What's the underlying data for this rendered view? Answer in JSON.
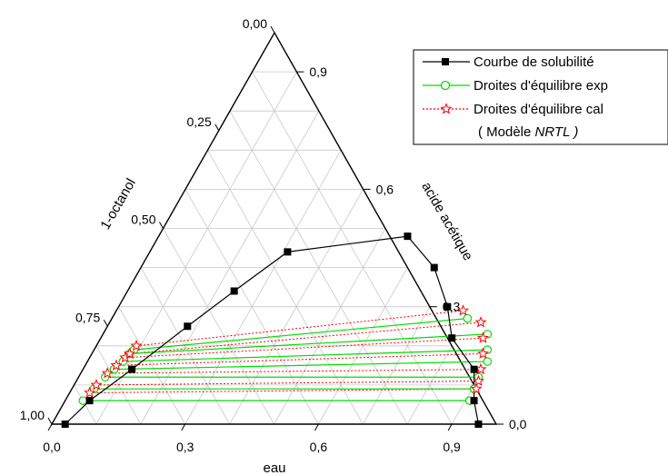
{
  "chart_data": {
    "type": "ternary",
    "axes": {
      "bottom": {
        "label": "eau",
        "ticks": [
          {
            "value": 0.0,
            "label": "0,0"
          },
          {
            "value": 0.3,
            "label": "0,3"
          },
          {
            "value": 0.6,
            "label": "0,6"
          },
          {
            "value": 0.9,
            "label": "0,9"
          }
        ]
      },
      "right": {
        "label": "acide acétique",
        "ticks": [
          {
            "value": 0.0,
            "label": "0,0"
          },
          {
            "value": 0.3,
            "label": "0,3"
          },
          {
            "value": 0.6,
            "label": "0,6"
          },
          {
            "value": 0.9,
            "label": "0,9"
          }
        ]
      },
      "left": {
        "label": "1-octanol",
        "ticks": [
          {
            "value": 0.0,
            "label": "0,00"
          },
          {
            "value": 0.25,
            "label": "0,25"
          },
          {
            "value": 0.5,
            "label": "0,50"
          },
          {
            "value": 0.75,
            "label": "0,75"
          },
          {
            "value": 1.0,
            "label": "1,00"
          }
        ]
      }
    },
    "grid": true,
    "legend_position": "top-right",
    "legend": {
      "entries": [
        {
          "label": "Courbe de solubilité",
          "style": "square",
          "color": "#000000"
        },
        {
          "label": "Droites d'équilibre exp",
          "style": "circle",
          "color": "#00dd00"
        },
        {
          "label": "Droites d'équilibre cal",
          "style": "star",
          "color": "#ff0000"
        }
      ],
      "note_prefix": "( Modèle ",
      "note_model": "NRTL",
      "note_suffix": " )"
    },
    "series": [
      {
        "name": "Courbe de solubilité",
        "color": "#000000",
        "points_eau_acide": [
          [
            0.03,
            0.0
          ],
          [
            0.055,
            0.06
          ],
          [
            0.11,
            0.14
          ],
          [
            0.18,
            0.25
          ],
          [
            0.24,
            0.34
          ],
          [
            0.31,
            0.44
          ],
          [
            0.56,
            0.48
          ],
          [
            0.66,
            0.4
          ],
          [
            0.74,
            0.3
          ],
          [
            0.79,
            0.22
          ],
          [
            0.88,
            0.14
          ],
          [
            0.92,
            0.06
          ],
          [
            0.96,
            0.0
          ]
        ]
      },
      {
        "name": "Droites d'équilibre exp",
        "color": "#00dd00",
        "tie_lines_eau_acide": [
          [
            [
              0.04,
              0.06
            ],
            [
              0.91,
              0.06
            ]
          ],
          [
            [
              0.05,
              0.09
            ],
            [
              0.905,
              0.09
            ]
          ],
          [
            [
              0.06,
              0.12
            ],
            [
              0.9,
              0.12
            ]
          ],
          [
            [
              0.07,
              0.14
            ],
            [
              0.9,
              0.16
            ]
          ],
          [
            [
              0.08,
              0.16
            ],
            [
              0.885,
              0.19
            ]
          ],
          [
            [
              0.085,
              0.18
            ],
            [
              0.865,
              0.23
            ]
          ],
          [
            [
              0.09,
              0.19
            ],
            [
              0.8,
              0.27
            ]
          ]
        ]
      },
      {
        "name": "Droites d'équilibre cal",
        "color": "#ff0000",
        "tie_lines_eau_acide": [
          [
            [
              0.045,
              0.08
            ],
            [
              0.91,
              0.09
            ]
          ],
          [
            [
              0.05,
              0.1
            ],
            [
              0.905,
              0.11
            ]
          ],
          [
            [
              0.06,
              0.13
            ],
            [
              0.895,
              0.14
            ]
          ],
          [
            [
              0.07,
              0.15
            ],
            [
              0.88,
              0.18
            ]
          ],
          [
            [
              0.08,
              0.17
            ],
            [
              0.86,
              0.22
            ]
          ],
          [
            [
              0.085,
              0.18
            ],
            [
              0.835,
              0.26
            ]
          ],
          [
            [
              0.09,
              0.2
            ],
            [
              0.78,
              0.29
            ]
          ]
        ]
      }
    ]
  }
}
